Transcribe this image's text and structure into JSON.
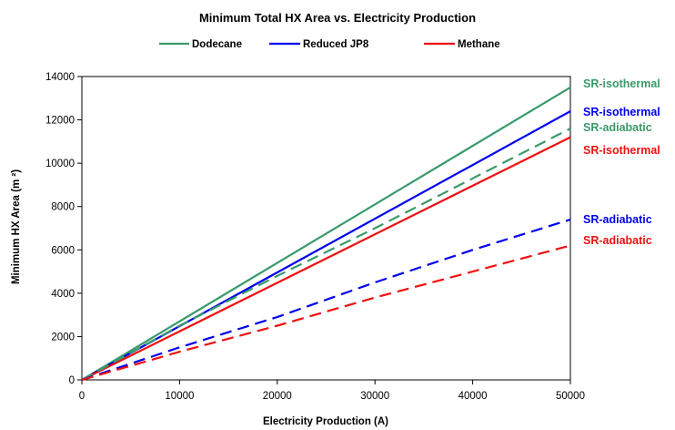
{
  "chart_data": {
    "type": "line",
    "title": "Minimum Total HX Area vs. Electricity Production",
    "xlabel": "Electricity Production (A)",
    "ylabel": "Minimum HX Area (m ²)",
    "xlim": [
      0,
      50000
    ],
    "ylim": [
      0,
      14000
    ],
    "xticks": [
      "0",
      "10000",
      "20000",
      "30000",
      "40000",
      "50000"
    ],
    "yticks": [
      "0",
      "2000",
      "4000",
      "6000",
      "8000",
      "10000",
      "12000",
      "14000"
    ],
    "grid": false,
    "legend_position": "top",
    "legend": [
      {
        "name": "Dodecane",
        "color": "#3a9a6a"
      },
      {
        "name": "Reduced JP8",
        "color": "#0000ee"
      },
      {
        "name": "Methane",
        "color": "#ee1111"
      }
    ],
    "series": [
      {
        "name": "Dodecane",
        "variant": "SR-isothermal",
        "color": "#3a9a6a",
        "dash": "solid",
        "x": [
          0,
          50000
        ],
        "values": [
          0,
          13500
        ]
      },
      {
        "name": "Reduced JP8",
        "variant": "SR-isothermal",
        "color": "#0000ee",
        "dash": "solid",
        "x": [
          0,
          50000
        ],
        "values": [
          0,
          12400
        ]
      },
      {
        "name": "Methane",
        "variant": "SR-isothermal",
        "color": "#ee1111",
        "dash": "solid",
        "x": [
          0,
          50000
        ],
        "values": [
          0,
          11200
        ]
      },
      {
        "name": "Dodecane",
        "variant": "SR-adiabatic",
        "color": "#3a9a6a",
        "dash": "dashed",
        "x": [
          0,
          10000,
          20000,
          30000,
          40000,
          50000
        ],
        "values": [
          0,
          2500,
          4800,
          7000,
          9300,
          11600
        ]
      },
      {
        "name": "Reduced JP8",
        "variant": "SR-adiabatic",
        "color": "#0000ee",
        "dash": "dashed",
        "x": [
          0,
          10000,
          20000,
          30000,
          40000,
          50000
        ],
        "values": [
          0,
          1500,
          2900,
          4500,
          6000,
          7400
        ]
      },
      {
        "name": "Methane",
        "variant": "SR-adiabatic",
        "color": "#ee1111",
        "dash": "dashed",
        "x": [
          0,
          10000,
          20000,
          30000,
          40000,
          50000
        ],
        "values": [
          0,
          1300,
          2500,
          3800,
          5000,
          6200
        ]
      }
    ],
    "annotations": [
      {
        "text": "SR-isothermal",
        "color": "#3a9a6a"
      },
      {
        "text": "SR-isothermal",
        "color": "#0000ee"
      },
      {
        "text": "SR-adiabatic",
        "color": "#3a9a6a"
      },
      {
        "text": "SR-isothermal",
        "color": "#ee1111"
      },
      {
        "text": "SR-adiabatic",
        "color": "#0000ee"
      },
      {
        "text": "SR-adiabatic",
        "color": "#ee1111"
      }
    ]
  }
}
